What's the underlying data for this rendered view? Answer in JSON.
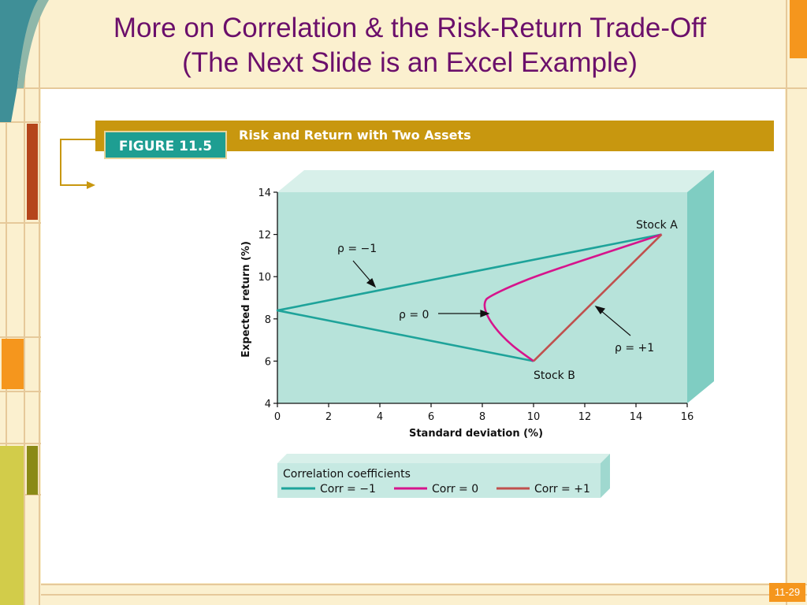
{
  "slide": {
    "title_line1": "More on Correlation & the Risk-Return Trade-Off",
    "title_line2": "(The Next Slide is an Excel Example)",
    "page_number": "11-29"
  },
  "colors": {
    "background": "#fbf0cf",
    "title": "#6b0f6b",
    "figure_bar": "#c8970f",
    "figure_label": "#1e9e92",
    "plot_bg": "#b7e3da",
    "corr_neg1": "#1ea39a",
    "corr_0": "#d6148c",
    "corr_pos1": "#c0504d",
    "page_badge": "#f5961d"
  },
  "figure": {
    "label": "FIGURE 11.5",
    "caption": "Risk and Return with Two Assets"
  },
  "chart_data": {
    "type": "line",
    "xlabel": "Standard deviation (%)",
    "ylabel": "Expected return (%)",
    "xlim": [
      0,
      16
    ],
    "ylim": [
      4,
      14
    ],
    "x_ticks": [
      0,
      2,
      4,
      6,
      8,
      10,
      12,
      14,
      16
    ],
    "y_ticks": [
      4,
      6,
      8,
      10,
      12,
      14
    ],
    "series": [
      {
        "name": "Corr = −1",
        "points": [
          [
            15,
            12
          ],
          [
            0,
            8.4
          ],
          [
            10,
            6
          ]
        ]
      },
      {
        "name": "Corr = 0",
        "points": [
          [
            15,
            12
          ],
          [
            13.2,
            11.28
          ],
          [
            11.4,
            10.56
          ],
          [
            9.72,
            9.84
          ],
          [
            8.4,
            9.12
          ],
          [
            8.1,
            8.76
          ],
          [
            8.2,
            8.16
          ],
          [
            8.6,
            7.44
          ],
          [
            9.2,
            6.72
          ],
          [
            10,
            6
          ]
        ]
      },
      {
        "name": "Corr = +1",
        "points": [
          [
            10,
            6
          ],
          [
            15,
            12
          ]
        ]
      }
    ],
    "annotations": {
      "stock_a": "Stock A",
      "stock_b": "Stock B",
      "rho_neg1": "ρ = −1",
      "rho_0": "ρ = 0",
      "rho_pos1": "ρ = +1"
    },
    "legend": {
      "title": "Correlation coefficients",
      "position": "bottom",
      "entries": [
        "Corr = −1",
        "Corr = 0",
        "Corr = +1"
      ]
    },
    "grid": false
  }
}
